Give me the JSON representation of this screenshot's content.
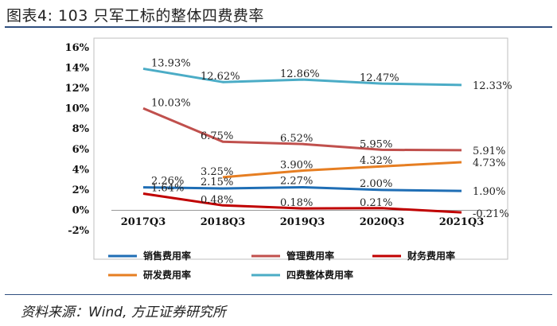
{
  "header": {
    "title": "图表4:   103 只军工标的整体四费费率"
  },
  "footer": {
    "source": "资料来源：Wind,  方正证券研究所"
  },
  "chart_data": {
    "type": "line",
    "title": "",
    "xlabel": "",
    "ylabel": "",
    "categories": [
      "2017Q3",
      "2018Q3",
      "2019Q3",
      "2020Q3",
      "2021Q3"
    ],
    "ylim": [
      -2,
      16
    ],
    "yticks": [
      "16%",
      "14%",
      "12%",
      "10%",
      "8%",
      "6%",
      "4%",
      "2%",
      "0%",
      "-2%"
    ],
    "grid": false,
    "legend_position": "bottom",
    "series": [
      {
        "name": "销售费用率",
        "color": "#1f6eb5",
        "values": [
          2.26,
          2.15,
          2.27,
          2.0,
          1.9
        ],
        "labels": [
          "2.26%",
          "2.15%",
          "2.27%",
          "2.00%",
          "1.90%"
        ]
      },
      {
        "name": "管理费用率",
        "color": "#c0504d",
        "values": [
          10.03,
          6.75,
          6.52,
          5.95,
          5.91
        ],
        "labels": [
          "10.03%",
          "6.75%",
          "6.52%",
          "5.95%",
          "5.91%"
        ]
      },
      {
        "name": "财务费用率",
        "color": "#c00000",
        "values": [
          1.64,
          0.48,
          0.18,
          0.21,
          -0.21
        ],
        "labels": [
          "1.64%",
          "0.48%",
          "0.18%",
          "0.21%",
          "-0.21%"
        ]
      },
      {
        "name": "研发费用率",
        "color": "#e67e22",
        "values": [
          null,
          3.25,
          3.9,
          4.32,
          4.73
        ],
        "labels": [
          "",
          "3.25%",
          "3.90%",
          "4.32%",
          "4.73%"
        ]
      },
      {
        "name": "四费整体费用率",
        "color": "#4bacc6",
        "values": [
          13.93,
          12.62,
          12.86,
          12.47,
          12.33
        ],
        "labels": [
          "13.93%",
          "12.62%",
          "12.86%",
          "12.47%",
          "12.33%"
        ]
      }
    ]
  }
}
